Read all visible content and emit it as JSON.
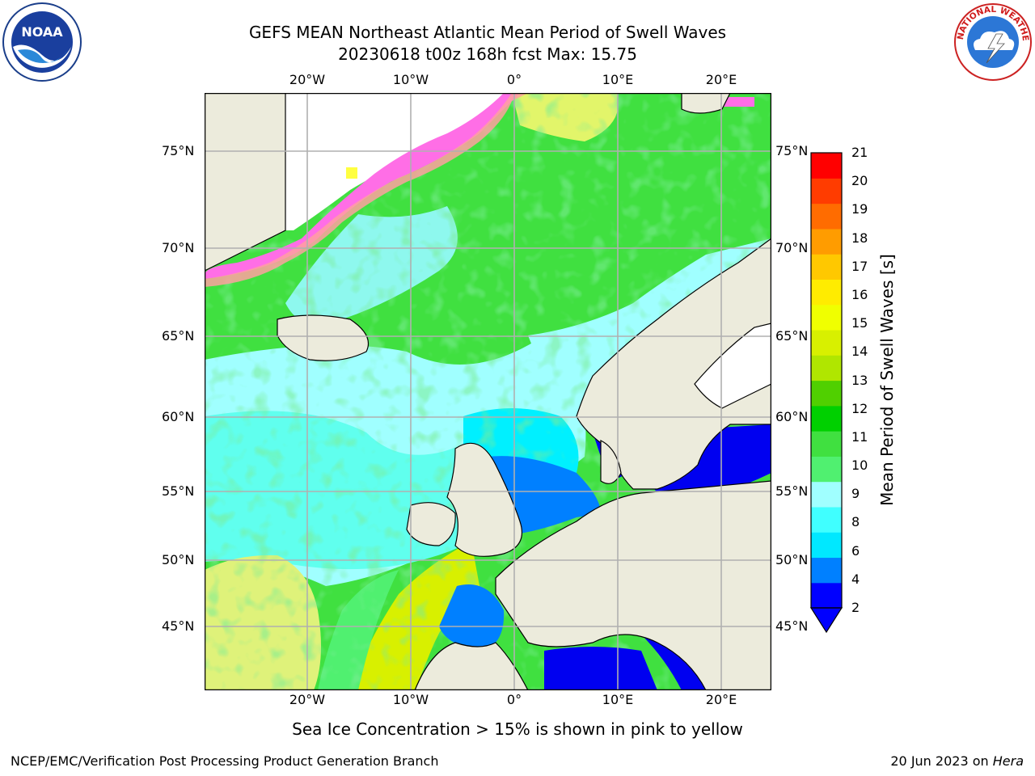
{
  "title_line1": "GEFS MEAN Northeast Atlantic Mean Period of Swell Waves",
  "title_line2": "20230618 t00z 168h fcst   Max: 15.75",
  "logos": {
    "left": "NOAA",
    "right": "NATIONAL WEATHER SERVICE"
  },
  "axes": {
    "lon_labels": [
      "20°W",
      "10°W",
      "0°",
      "10°E",
      "20°E"
    ],
    "lat_labels_left": [
      "75°N",
      "70°N",
      "65°N",
      "60°N",
      "55°N",
      "50°N",
      "45°N"
    ],
    "lat_labels_right": [
      "75°N",
      "70°N",
      "65°N",
      "60°N",
      "55°N",
      "50°N",
      "45°N"
    ],
    "grid": true
  },
  "colorbar": {
    "label": "Mean Period of Swell Waves [s]",
    "ticks": [
      "21",
      "20",
      "19",
      "18",
      "17",
      "16",
      "15",
      "14",
      "13",
      "12",
      "11",
      "10",
      "9",
      "8",
      "6",
      "4",
      "2"
    ],
    "colors": [
      "#0000ff",
      "#0080ff",
      "#00e8ff",
      "#40ffff",
      "#a0ffff",
      "#50f070",
      "#40e040",
      "#00d000",
      "#50d000",
      "#b0e600",
      "#d8f000",
      "#f0ff00",
      "#ffec00",
      "#ffc800",
      "#ff9c00",
      "#ff6c00",
      "#ff3c00",
      "#ff0000"
    ]
  },
  "palette": {
    "land": "#ecebdc",
    "ice_pink": "#ff6ee6",
    "ice_orange": "#ffa0a0",
    "ice_yellow": "#ffff40",
    "ice_white": "#ffffff",
    "grid": "#b0b0b0"
  },
  "ice_note": "Sea Ice Concentration > 15% is shown in pink to yellow",
  "footer": {
    "left": "NCEP/EMC/Verification Post Processing Product Generation Branch",
    "right_prefix": "20 Jun 2023 on ",
    "right_machine": "Hera"
  }
}
